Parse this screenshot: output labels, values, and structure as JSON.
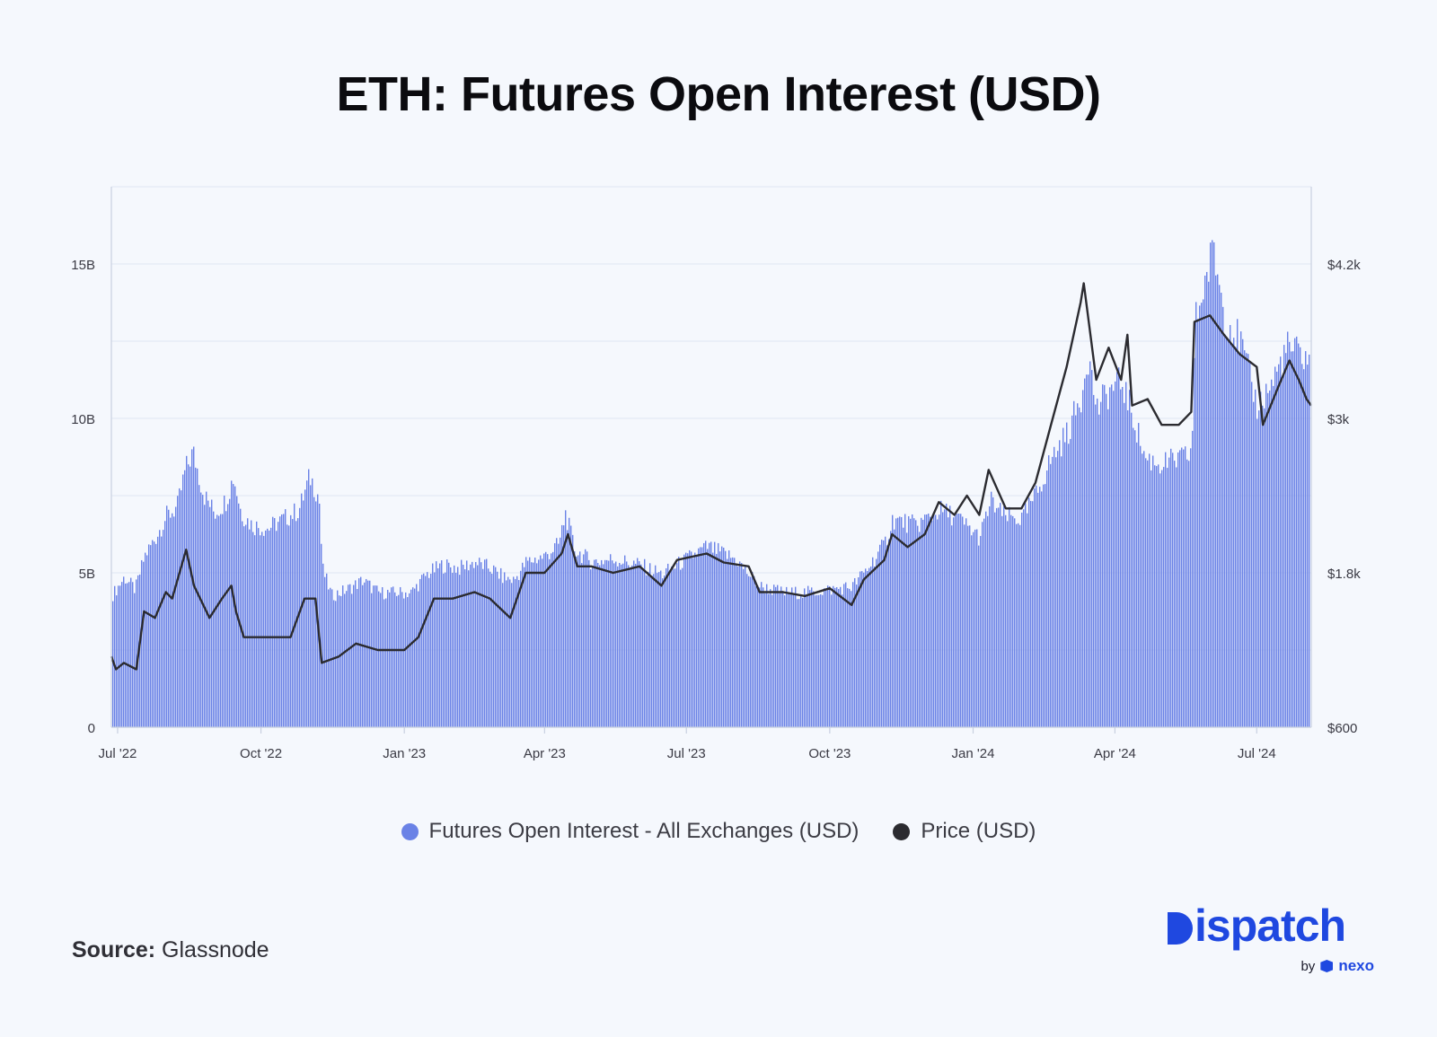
{
  "title": "ETH: Futures Open Interest (USD)",
  "source": {
    "label": "Source:",
    "value": "Glassnode"
  },
  "brand": {
    "name": "ispatch",
    "by": "by",
    "partner": "nexo"
  },
  "colors": {
    "bars": "#6a82e6",
    "price": "#2b2b30",
    "grid": "#e0e6f2",
    "axis": "#c8d0e0",
    "background": "#f5f8fd"
  },
  "icons": {
    "logo_mark": "dispatch-d-icon",
    "partner_mark": "nexo-icon"
  },
  "chart_data": {
    "type": "bar+line",
    "x_range": [
      "2022-06-27",
      "2024-08-05"
    ],
    "x_ticks": [
      {
        "date": "2022-07-01",
        "label": "Jul '22"
      },
      {
        "date": "2022-10-01",
        "label": "Oct '22"
      },
      {
        "date": "2023-01-01",
        "label": "Jan '23"
      },
      {
        "date": "2023-04-01",
        "label": "Apr '23"
      },
      {
        "date": "2023-07-01",
        "label": "Jul '23"
      },
      {
        "date": "2023-10-01",
        "label": "Oct '23"
      },
      {
        "date": "2024-01-01",
        "label": "Jan '24"
      },
      {
        "date": "2024-04-01",
        "label": "Apr '24"
      },
      {
        "date": "2024-07-01",
        "label": "Jul '24"
      }
    ],
    "y_left": {
      "min": 0,
      "max": 17.5,
      "unit": "B",
      "ticks": [
        {
          "value": 0,
          "label": "0"
        },
        {
          "value": 5,
          "label": "5B"
        },
        {
          "value": 10,
          "label": "10B"
        },
        {
          "value": 15,
          "label": "15B"
        }
      ]
    },
    "y_right": {
      "min": 600,
      "max": 4800,
      "ticks": [
        {
          "value": 600,
          "label": "$600"
        },
        {
          "value": 1800,
          "label": "$1.8k"
        },
        {
          "value": 3000,
          "label": "$3k"
        },
        {
          "value": 4200,
          "label": "$4.2k"
        }
      ]
    },
    "grid": true,
    "legend_position": "bottom",
    "series": [
      {
        "name": "Futures Open Interest - All Exchanges (USD)",
        "type": "bar",
        "axis": "left",
        "unit": "B USD",
        "points": [
          [
            "2022-06-27",
            4.3
          ],
          [
            "2022-07-05",
            4.9
          ],
          [
            "2022-07-12",
            4.5
          ],
          [
            "2022-07-18",
            5.6
          ],
          [
            "2022-07-25",
            6.2
          ],
          [
            "2022-08-01",
            6.9
          ],
          [
            "2022-08-08",
            7.2
          ],
          [
            "2022-08-13",
            8.4
          ],
          [
            "2022-08-18",
            9.0
          ],
          [
            "2022-08-25",
            7.6
          ],
          [
            "2022-09-01",
            7.0
          ],
          [
            "2022-09-08",
            7.4
          ],
          [
            "2022-09-13",
            8.2
          ],
          [
            "2022-09-18",
            7.0
          ],
          [
            "2022-09-25",
            6.6
          ],
          [
            "2022-10-05",
            6.5
          ],
          [
            "2022-10-15",
            6.8
          ],
          [
            "2022-10-25",
            7.1
          ],
          [
            "2022-11-01",
            8.2
          ],
          [
            "2022-11-07",
            7.5
          ],
          [
            "2022-11-09",
            5.2
          ],
          [
            "2022-11-15",
            4.3
          ],
          [
            "2022-11-25",
            4.5
          ],
          [
            "2022-12-05",
            4.8
          ],
          [
            "2022-12-15",
            4.4
          ],
          [
            "2022-12-25",
            4.4
          ],
          [
            "2023-01-05",
            4.4
          ],
          [
            "2023-01-15",
            5.0
          ],
          [
            "2023-01-25",
            5.3
          ],
          [
            "2023-02-05",
            5.2
          ],
          [
            "2023-02-15",
            5.4
          ],
          [
            "2023-02-25",
            5.2
          ],
          [
            "2023-03-05",
            4.9
          ],
          [
            "2023-03-12",
            4.8
          ],
          [
            "2023-03-20",
            5.4
          ],
          [
            "2023-04-01",
            5.6
          ],
          [
            "2023-04-10",
            6.0
          ],
          [
            "2023-04-14",
            7.0
          ],
          [
            "2023-04-20",
            5.8
          ],
          [
            "2023-05-01",
            5.4
          ],
          [
            "2023-05-15",
            5.5
          ],
          [
            "2023-06-01",
            5.3
          ],
          [
            "2023-06-15",
            5.0
          ],
          [
            "2023-07-01",
            5.5
          ],
          [
            "2023-07-14",
            5.9
          ],
          [
            "2023-08-01",
            5.5
          ],
          [
            "2023-08-17",
            4.6
          ],
          [
            "2023-09-01",
            4.4
          ],
          [
            "2023-09-15",
            4.4
          ],
          [
            "2023-10-01",
            4.5
          ],
          [
            "2023-10-15",
            4.6
          ],
          [
            "2023-10-25",
            5.2
          ],
          [
            "2023-11-05",
            6.0
          ],
          [
            "2023-11-10",
            6.8
          ],
          [
            "2023-11-25",
            6.6
          ],
          [
            "2023-12-10",
            7.1
          ],
          [
            "2023-12-20",
            6.9
          ],
          [
            "2024-01-05",
            6.2
          ],
          [
            "2024-01-12",
            7.4
          ],
          [
            "2024-01-20",
            6.9
          ],
          [
            "2024-02-01",
            6.8
          ],
          [
            "2024-02-10",
            7.6
          ],
          [
            "2024-02-20",
            8.8
          ],
          [
            "2024-03-01",
            9.6
          ],
          [
            "2024-03-10",
            10.8
          ],
          [
            "2024-03-14",
            12.3
          ],
          [
            "2024-03-20",
            10.4
          ],
          [
            "2024-03-28",
            11.0
          ],
          [
            "2024-04-05",
            11.3
          ],
          [
            "2024-04-12",
            10.2
          ],
          [
            "2024-04-20",
            8.8
          ],
          [
            "2024-05-01",
            8.6
          ],
          [
            "2024-05-15",
            8.8
          ],
          [
            "2024-05-20",
            9.0
          ],
          [
            "2024-05-22",
            13.2
          ],
          [
            "2024-05-28",
            14.5
          ],
          [
            "2024-06-03",
            15.6
          ],
          [
            "2024-06-10",
            13.5
          ],
          [
            "2024-06-20",
            12.6
          ],
          [
            "2024-07-01",
            10.5
          ],
          [
            "2024-07-10",
            11.2
          ],
          [
            "2024-07-20",
            12.4
          ],
          [
            "2024-08-01",
            12.1
          ]
        ]
      },
      {
        "name": "Price (USD)",
        "type": "line",
        "axis": "right",
        "unit": "USD",
        "points": [
          [
            "2022-06-27",
            1150
          ],
          [
            "2022-06-30",
            1050
          ],
          [
            "2022-07-05",
            1100
          ],
          [
            "2022-07-13",
            1050
          ],
          [
            "2022-07-18",
            1500
          ],
          [
            "2022-07-25",
            1450
          ],
          [
            "2022-08-01",
            1650
          ],
          [
            "2022-08-05",
            1600
          ],
          [
            "2022-08-14",
            1980
          ],
          [
            "2022-08-19",
            1700
          ],
          [
            "2022-08-29",
            1450
          ],
          [
            "2022-09-06",
            1600
          ],
          [
            "2022-09-12",
            1700
          ],
          [
            "2022-09-15",
            1500
          ],
          [
            "2022-09-20",
            1300
          ],
          [
            "2022-10-01",
            1300
          ],
          [
            "2022-10-10",
            1300
          ],
          [
            "2022-10-20",
            1300
          ],
          [
            "2022-10-29",
            1600
          ],
          [
            "2022-11-05",
            1600
          ],
          [
            "2022-11-09",
            1100
          ],
          [
            "2022-11-20",
            1150
          ],
          [
            "2022-12-01",
            1250
          ],
          [
            "2022-12-15",
            1200
          ],
          [
            "2023-01-01",
            1200
          ],
          [
            "2023-01-10",
            1300
          ],
          [
            "2023-01-20",
            1600
          ],
          [
            "2023-02-01",
            1600
          ],
          [
            "2023-02-15",
            1650
          ],
          [
            "2023-02-25",
            1600
          ],
          [
            "2023-03-10",
            1450
          ],
          [
            "2023-03-20",
            1800
          ],
          [
            "2023-04-01",
            1800
          ],
          [
            "2023-04-12",
            1950
          ],
          [
            "2023-04-16",
            2100
          ],
          [
            "2023-04-22",
            1850
          ],
          [
            "2023-05-01",
            1850
          ],
          [
            "2023-05-15",
            1800
          ],
          [
            "2023-06-01",
            1850
          ],
          [
            "2023-06-15",
            1700
          ],
          [
            "2023-06-25",
            1900
          ],
          [
            "2023-07-14",
            1950
          ],
          [
            "2023-07-25",
            1880
          ],
          [
            "2023-08-10",
            1850
          ],
          [
            "2023-08-17",
            1650
          ],
          [
            "2023-09-01",
            1650
          ],
          [
            "2023-09-15",
            1620
          ],
          [
            "2023-10-01",
            1680
          ],
          [
            "2023-10-15",
            1550
          ],
          [
            "2023-10-23",
            1750
          ],
          [
            "2023-11-05",
            1900
          ],
          [
            "2023-11-10",
            2100
          ],
          [
            "2023-11-20",
            2000
          ],
          [
            "2023-12-01",
            2100
          ],
          [
            "2023-12-10",
            2350
          ],
          [
            "2023-12-20",
            2250
          ],
          [
            "2023-12-28",
            2400
          ],
          [
            "2024-01-05",
            2250
          ],
          [
            "2024-01-11",
            2600
          ],
          [
            "2024-01-22",
            2300
          ],
          [
            "2024-02-01",
            2300
          ],
          [
            "2024-02-10",
            2500
          ],
          [
            "2024-02-20",
            2950
          ],
          [
            "2024-03-01",
            3400
          ],
          [
            "2024-03-10",
            3900
          ],
          [
            "2024-03-12",
            4050
          ],
          [
            "2024-03-20",
            3300
          ],
          [
            "2024-03-28",
            3550
          ],
          [
            "2024-04-05",
            3300
          ],
          [
            "2024-04-09",
            3650
          ],
          [
            "2024-04-12",
            3100
          ],
          [
            "2024-04-22",
            3150
          ],
          [
            "2024-05-01",
            2950
          ],
          [
            "2024-05-12",
            2950
          ],
          [
            "2024-05-20",
            3050
          ],
          [
            "2024-05-22",
            3750
          ],
          [
            "2024-06-01",
            3800
          ],
          [
            "2024-06-10",
            3650
          ],
          [
            "2024-06-20",
            3500
          ],
          [
            "2024-07-01",
            3400
          ],
          [
            "2024-07-05",
            2950
          ],
          [
            "2024-07-15",
            3250
          ],
          [
            "2024-07-22",
            3450
          ],
          [
            "2024-07-28",
            3300
          ],
          [
            "2024-08-02",
            3150
          ],
          [
            "2024-08-05",
            3100
          ]
        ]
      }
    ]
  }
}
